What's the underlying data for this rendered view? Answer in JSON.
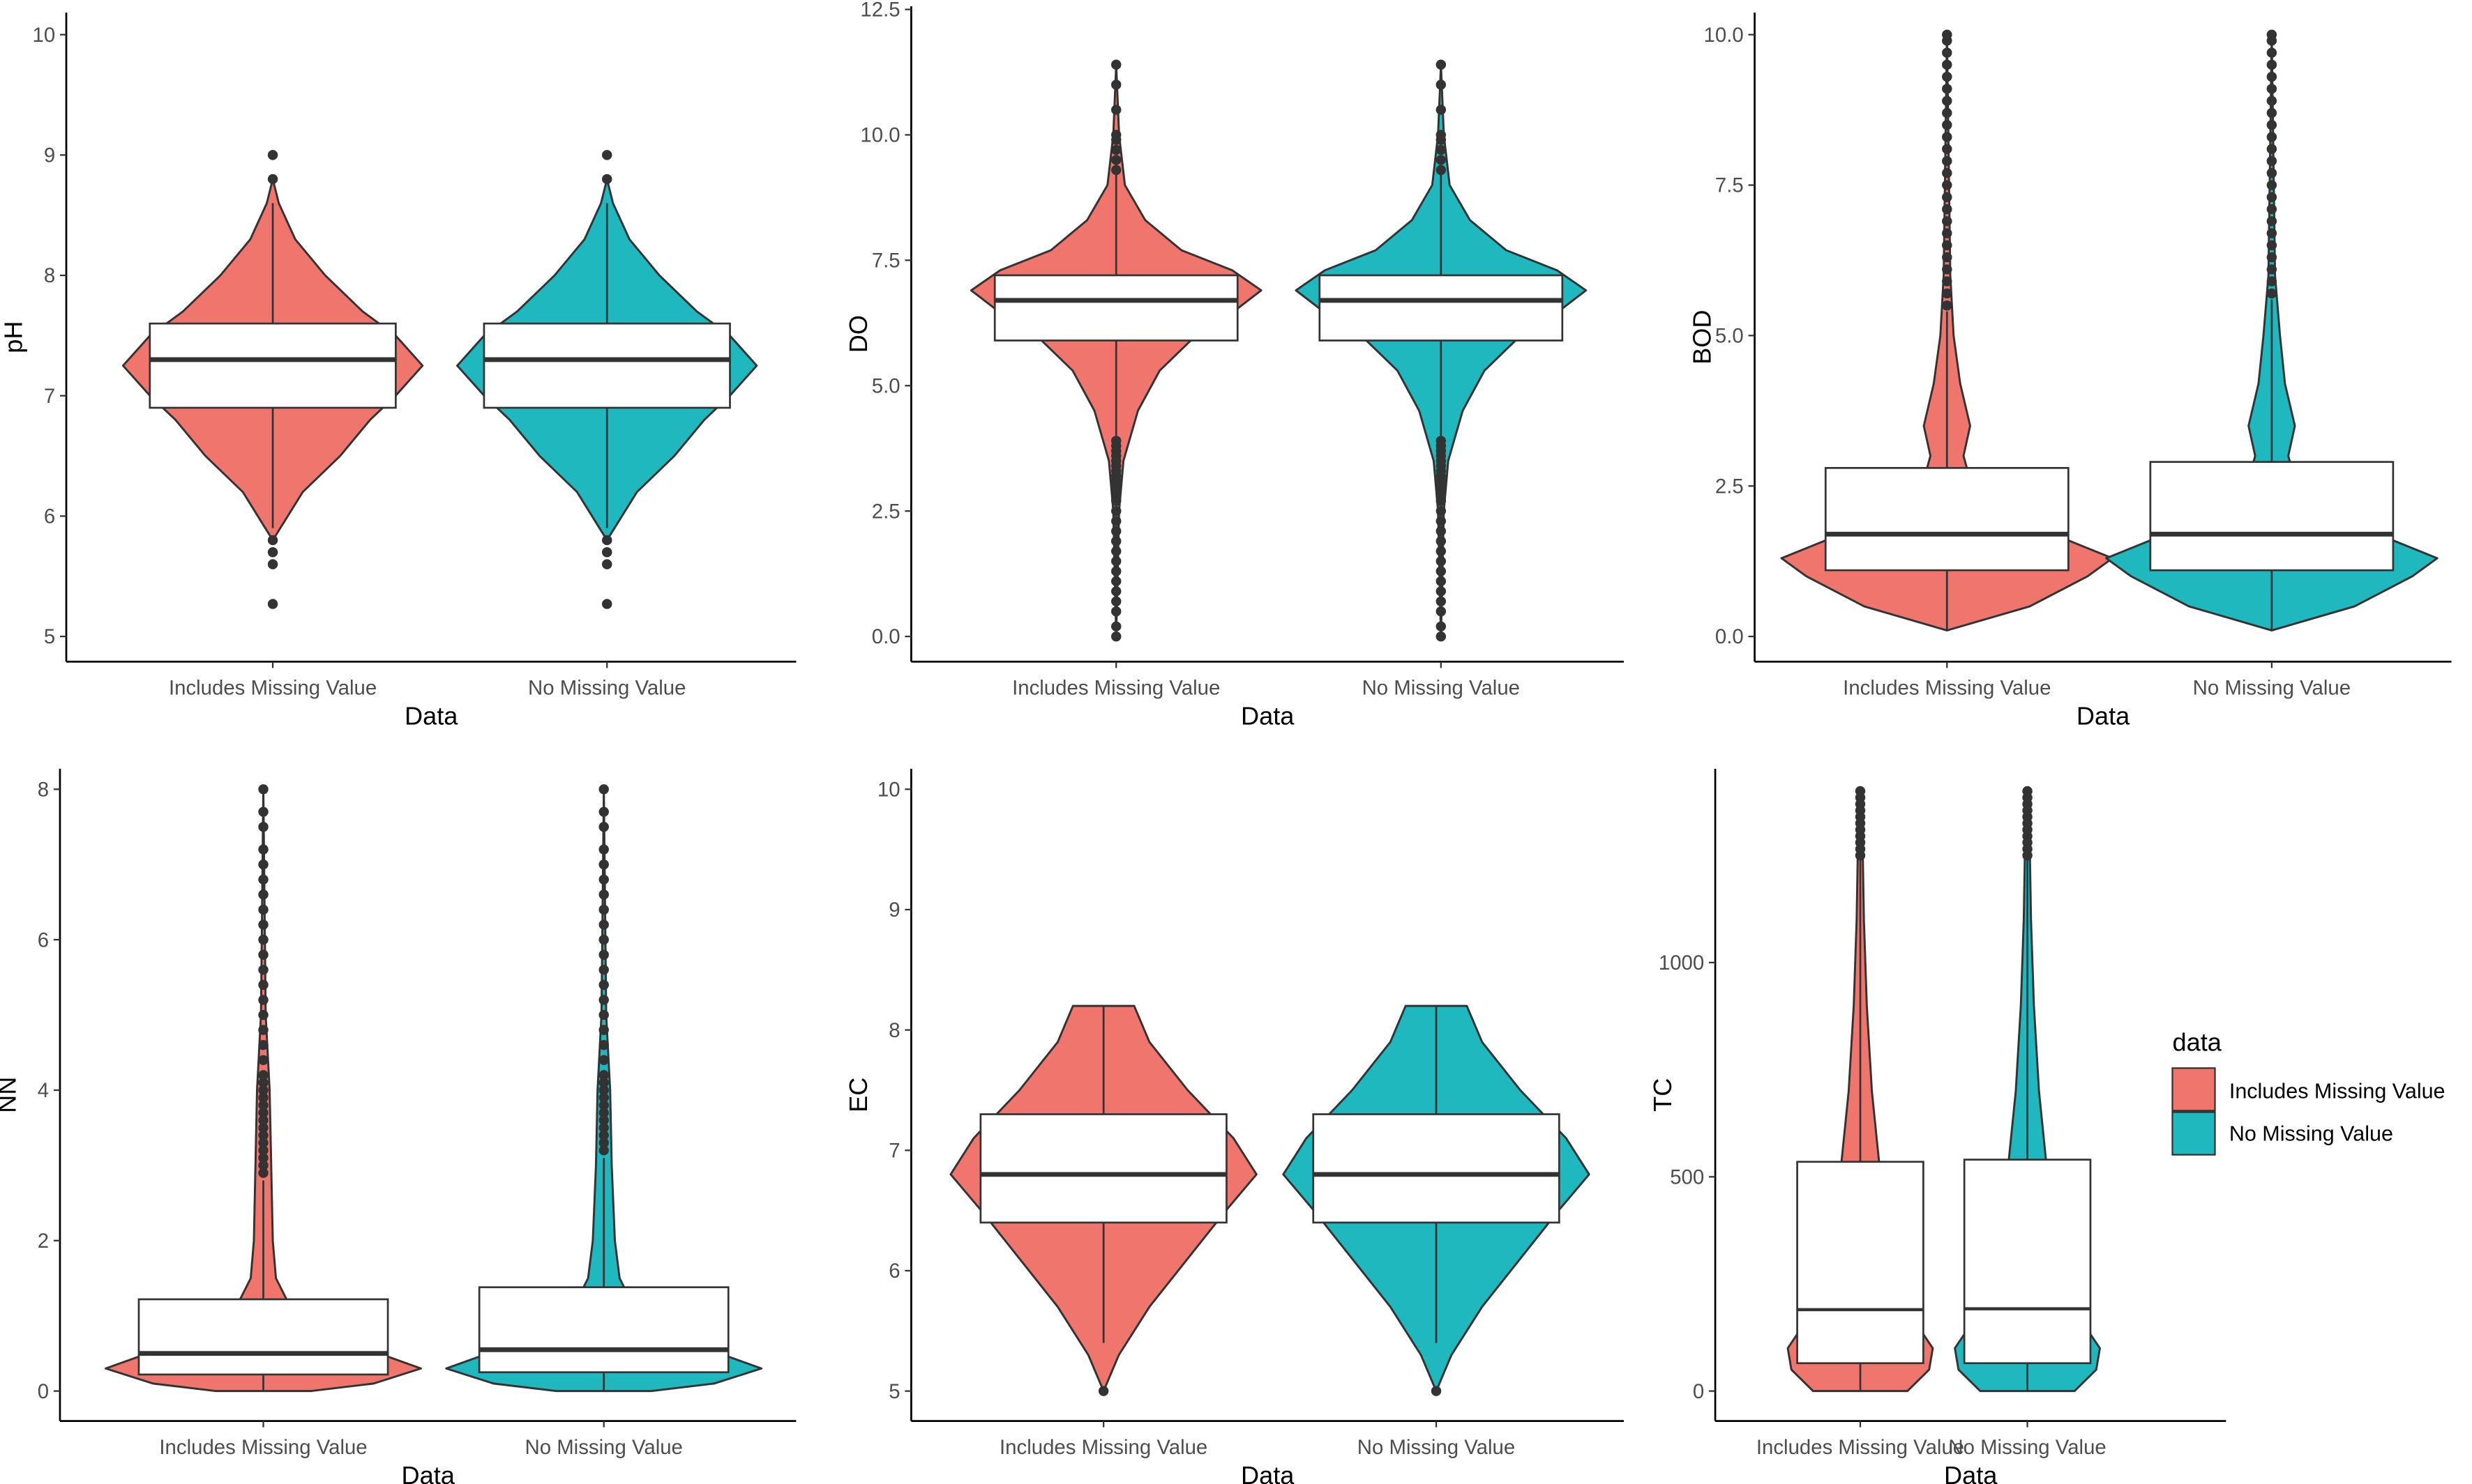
{
  "chart_data": [
    {
      "type": "violin-box",
      "ylabel": "pH",
      "xlabel": "Data",
      "categories": [
        "Includes Missing Value",
        "No Missing Value"
      ],
      "yticks": [
        5,
        6,
        7,
        8,
        9,
        10
      ],
      "ylim": [
        4.8,
        10.3
      ],
      "series": [
        {
          "name": "Includes Missing Value",
          "density": [
            [
              5.8,
              0
            ],
            [
              5.9,
              0.05
            ],
            [
              6.2,
              0.2
            ],
            [
              6.5,
              0.45
            ],
            [
              6.8,
              0.65
            ],
            [
              7.0,
              0.82
            ],
            [
              7.25,
              1.0
            ],
            [
              7.5,
              0.82
            ],
            [
              7.7,
              0.6
            ],
            [
              8.0,
              0.35
            ],
            [
              8.3,
              0.15
            ],
            [
              8.6,
              0.04
            ],
            [
              8.8,
              0
            ]
          ],
          "q1": 6.9,
          "median": 7.3,
          "q3": 7.6,
          "whisker_low": 5.9,
          "whisker_high": 8.6,
          "outliers": [
            5.27,
            5.6,
            5.7,
            5.8,
            8.8,
            9.0
          ]
        },
        {
          "name": "No Missing Value",
          "density": [
            [
              5.8,
              0
            ],
            [
              5.9,
              0.05
            ],
            [
              6.2,
              0.2
            ],
            [
              6.5,
              0.45
            ],
            [
              6.8,
              0.65
            ],
            [
              7.0,
              0.82
            ],
            [
              7.25,
              1.0
            ],
            [
              7.5,
              0.82
            ],
            [
              7.7,
              0.6
            ],
            [
              8.0,
              0.35
            ],
            [
              8.3,
              0.15
            ],
            [
              8.6,
              0.04
            ],
            [
              8.8,
              0
            ]
          ],
          "q1": 6.9,
          "median": 7.3,
          "q3": 7.6,
          "whisker_low": 5.9,
          "whisker_high": 8.6,
          "outliers": [
            5.27,
            5.6,
            5.7,
            5.8,
            8.8,
            9.0
          ]
        }
      ]
    },
    {
      "type": "violin-box",
      "ylabel": "DO",
      "xlabel": "Data",
      "categories": [
        "Includes Missing Value",
        "No Missing Value"
      ],
      "yticks": [
        0.0,
        2.5,
        5.0,
        7.5,
        10.0,
        12.5
      ],
      "ytick_labels": [
        "0.0",
        "2.5",
        "5.0",
        "7.5",
        "10.0",
        "12.5"
      ],
      "ylim": [
        -0.6,
        12.6
      ],
      "series": [
        {
          "name": "Includes Missing Value",
          "density": [
            [
              0,
              0
            ],
            [
              2.5,
              0.02
            ],
            [
              3.5,
              0.05
            ],
            [
              4.5,
              0.15
            ],
            [
              5.3,
              0.3
            ],
            [
              6.0,
              0.55
            ],
            [
              6.5,
              0.82
            ],
            [
              6.9,
              1.0
            ],
            [
              7.3,
              0.8
            ],
            [
              7.7,
              0.45
            ],
            [
              8.3,
              0.2
            ],
            [
              9.0,
              0.06
            ],
            [
              10,
              0.02
            ],
            [
              11.4,
              0
            ]
          ],
          "q1": 5.9,
          "median": 6.7,
          "q3": 7.2,
          "whisker_low": 4.0,
          "whisker_high": 9.2,
          "outliers": [
            0,
            0.2,
            0.5,
            0.7,
            0.9,
            1.1,
            1.3,
            1.5,
            1.7,
            1.9,
            2.1,
            2.3,
            2.5,
            2.7,
            2.8,
            2.9,
            3.0,
            3.1,
            3.2,
            3.3,
            3.4,
            3.5,
            3.6,
            3.7,
            3.8,
            3.9,
            9.3,
            9.5,
            9.7,
            9.9,
            10.0,
            10.5,
            11.0,
            11.4
          ]
        },
        {
          "name": "No Missing Value",
          "density": [
            [
              0,
              0
            ],
            [
              2.5,
              0.02
            ],
            [
              3.5,
              0.05
            ],
            [
              4.5,
              0.15
            ],
            [
              5.3,
              0.3
            ],
            [
              6.0,
              0.55
            ],
            [
              6.5,
              0.82
            ],
            [
              6.9,
              1.0
            ],
            [
              7.3,
              0.8
            ],
            [
              7.7,
              0.45
            ],
            [
              8.3,
              0.2
            ],
            [
              9.0,
              0.06
            ],
            [
              10,
              0.02
            ],
            [
              11.4,
              0
            ]
          ],
          "q1": 5.9,
          "median": 6.7,
          "q3": 7.2,
          "whisker_low": 4.0,
          "whisker_high": 9.2,
          "outliers": [
            0,
            0.2,
            0.5,
            0.7,
            0.9,
            1.1,
            1.3,
            1.5,
            1.7,
            1.9,
            2.1,
            2.3,
            2.5,
            2.7,
            2.8,
            2.9,
            3.0,
            3.1,
            3.2,
            3.3,
            3.4,
            3.5,
            3.6,
            3.7,
            3.8,
            3.9,
            9.3,
            9.5,
            9.7,
            9.9,
            10.0,
            10.5,
            11.0,
            11.4
          ]
        }
      ]
    },
    {
      "type": "violin-box",
      "ylabel": "BOD",
      "xlabel": "Data",
      "categories": [
        "Includes Missing Value",
        "No Missing Value"
      ],
      "yticks": [
        0.0,
        2.5,
        5.0,
        7.5,
        10.0
      ],
      "ytick_labels": [
        "0.0",
        "2.5",
        "5.0",
        "7.5",
        "10.0"
      ],
      "ylim": [
        -0.4,
        10.5
      ],
      "series": [
        {
          "name": "Includes Missing Value",
          "density": [
            [
              0.1,
              0
            ],
            [
              0.5,
              0.5
            ],
            [
              1.0,
              0.85
            ],
            [
              1.3,
              1.0
            ],
            [
              1.8,
              0.55
            ],
            [
              2.5,
              0.15
            ],
            [
              3.0,
              0.1
            ],
            [
              3.5,
              0.14
            ],
            [
              4.2,
              0.08
            ],
            [
              5,
              0.04
            ],
            [
              6,
              0.02
            ],
            [
              8,
              0.01
            ],
            [
              10,
              0
            ]
          ],
          "q1": 1.1,
          "median": 1.7,
          "q3": 2.8,
          "whisker_low": 0.1,
          "whisker_high": 5.4,
          "outliers": [
            5.5,
            5.7,
            5.9,
            6.1,
            6.3,
            6.5,
            6.7,
            6.9,
            7.1,
            7.3,
            7.5,
            7.7,
            7.9,
            8.1,
            8.3,
            8.5,
            8.7,
            8.9,
            9.1,
            9.3,
            9.5,
            9.7,
            9.9,
            10.0
          ]
        },
        {
          "name": "No Missing Value",
          "density": [
            [
              0.1,
              0
            ],
            [
              0.5,
              0.5
            ],
            [
              1.0,
              0.85
            ],
            [
              1.3,
              1.0
            ],
            [
              1.8,
              0.55
            ],
            [
              2.5,
              0.15
            ],
            [
              3.0,
              0.1
            ],
            [
              3.5,
              0.14
            ],
            [
              4.2,
              0.08
            ],
            [
              5,
              0.05
            ],
            [
              6,
              0.02
            ],
            [
              8,
              0.01
            ],
            [
              10,
              0
            ]
          ],
          "q1": 1.1,
          "median": 1.7,
          "q3": 2.9,
          "whisker_low": 0.1,
          "whisker_high": 5.6,
          "outliers": [
            5.7,
            5.9,
            6.1,
            6.3,
            6.5,
            6.7,
            6.9,
            7.1,
            7.3,
            7.5,
            7.7,
            7.9,
            8.1,
            8.3,
            8.5,
            8.7,
            8.9,
            9.1,
            9.3,
            9.5,
            9.7,
            9.9,
            10.0
          ]
        }
      ]
    },
    {
      "type": "violin-box",
      "ylabel": "NN",
      "xlabel": "Data",
      "categories": [
        "Includes Missing Value",
        "No Missing Value"
      ],
      "yticks": [
        0,
        2,
        4,
        6,
        8
      ],
      "ylim": [
        -0.4,
        8.2
      ],
      "series": [
        {
          "name": "Includes Missing Value",
          "density": [
            [
              0,
              0.3
            ],
            [
              0.1,
              0.7
            ],
            [
              0.3,
              1.0
            ],
            [
              0.6,
              0.6
            ],
            [
              1.0,
              0.2
            ],
            [
              1.5,
              0.08
            ],
            [
              2,
              0.06
            ],
            [
              3,
              0.05
            ],
            [
              4,
              0.04
            ],
            [
              5,
              0.015
            ],
            [
              8,
              0
            ]
          ],
          "q1": 0.22,
          "median": 0.5,
          "q3": 1.22,
          "whisker_low": 0,
          "whisker_high": 2.8,
          "outliers": [
            2.9,
            3.0,
            3.1,
            3.2,
            3.3,
            3.4,
            3.5,
            3.6,
            3.7,
            3.8,
            3.9,
            4.0,
            4.1,
            4.2,
            4.4,
            4.6,
            4.8,
            5.0,
            5.2,
            5.4,
            5.6,
            5.8,
            6.0,
            6.2,
            6.4,
            6.6,
            6.8,
            7.0,
            7.2,
            7.5,
            7.7,
            8.0
          ]
        },
        {
          "name": "No Missing Value",
          "density": [
            [
              0,
              0.3
            ],
            [
              0.1,
              0.7
            ],
            [
              0.3,
              1.0
            ],
            [
              0.6,
              0.6
            ],
            [
              1.0,
              0.22
            ],
            [
              1.5,
              0.1
            ],
            [
              2,
              0.07
            ],
            [
              3,
              0.05
            ],
            [
              4,
              0.04
            ],
            [
              5,
              0.015
            ],
            [
              8,
              0
            ]
          ],
          "q1": 0.25,
          "median": 0.55,
          "q3": 1.38,
          "whisker_low": 0,
          "whisker_high": 3.1,
          "outliers": [
            3.2,
            3.3,
            3.4,
            3.5,
            3.6,
            3.7,
            3.8,
            3.9,
            4.0,
            4.1,
            4.2,
            4.4,
            4.6,
            4.8,
            5.0,
            5.2,
            5.4,
            5.6,
            5.8,
            6.0,
            6.2,
            6.4,
            6.6,
            6.8,
            7.0,
            7.2,
            7.5,
            7.7,
            8.0
          ]
        }
      ]
    },
    {
      "type": "violin-box",
      "ylabel": "EC",
      "xlabel": "Data",
      "categories": [
        "Includes Missing Value",
        "No Missing Value"
      ],
      "yticks": [
        5,
        6,
        7,
        8,
        9,
        10
      ],
      "ylim": [
        4.8,
        10.3
      ],
      "series": [
        {
          "name": "Includes Missing Value",
          "density": [
            [
              5,
              0
            ],
            [
              5.3,
              0.1
            ],
            [
              5.7,
              0.3
            ],
            [
              6.1,
              0.55
            ],
            [
              6.5,
              0.8
            ],
            [
              6.8,
              1.0
            ],
            [
              7.1,
              0.85
            ],
            [
              7.5,
              0.55
            ],
            [
              7.9,
              0.3
            ],
            [
              8.2,
              0.2
            ]
          ],
          "q1": 6.4,
          "median": 6.8,
          "q3": 7.3,
          "whisker_low": 5.4,
          "whisker_high": 8.2,
          "outliers": [
            5.0
          ]
        },
        {
          "name": "No Missing Value",
          "density": [
            [
              5,
              0
            ],
            [
              5.3,
              0.1
            ],
            [
              5.7,
              0.3
            ],
            [
              6.1,
              0.55
            ],
            [
              6.5,
              0.8
            ],
            [
              6.8,
              1.0
            ],
            [
              7.1,
              0.85
            ],
            [
              7.5,
              0.55
            ],
            [
              7.9,
              0.3
            ],
            [
              8.2,
              0.2
            ]
          ],
          "q1": 6.4,
          "median": 6.8,
          "q3": 7.3,
          "whisker_low": 5.4,
          "whisker_high": 8.2,
          "outliers": [
            5.0
          ]
        }
      ]
    },
    {
      "type": "violin-box",
      "ylabel": "TC",
      "xlabel": "Data",
      "categories": [
        "Includes Missing Value",
        "No Missing Value"
      ],
      "yticks": [
        0,
        500,
        1000
      ],
      "ylim": [
        -70,
        1460
      ],
      "series": [
        {
          "name": "Includes Missing Value",
          "density": [
            [
              0,
              0.65
            ],
            [
              50,
              0.95
            ],
            [
              100,
              1.0
            ],
            [
              150,
              0.8
            ],
            [
              200,
              0.4
            ],
            [
              300,
              0.3
            ],
            [
              500,
              0.28
            ],
            [
              700,
              0.16
            ],
            [
              900,
              0.09
            ],
            [
              1100,
              0.05
            ],
            [
              1300,
              0.03
            ],
            [
              1400,
              0
            ]
          ],
          "q1": 65,
          "median": 190,
          "q3": 535,
          "whisker_low": 0,
          "whisker_high": 1240,
          "outliers": [
            1250,
            1265,
            1280,
            1295,
            1310,
            1325,
            1340,
            1355,
            1370,
            1385,
            1400
          ]
        },
        {
          "name": "No Missing Value",
          "density": [
            [
              0,
              0.65
            ],
            [
              50,
              0.95
            ],
            [
              100,
              1.0
            ],
            [
              150,
              0.8
            ],
            [
              200,
              0.4
            ],
            [
              300,
              0.3
            ],
            [
              500,
              0.28
            ],
            [
              700,
              0.16
            ],
            [
              900,
              0.09
            ],
            [
              1100,
              0.05
            ],
            [
              1300,
              0.03
            ],
            [
              1400,
              0
            ]
          ],
          "q1": 65,
          "median": 192,
          "q3": 540,
          "whisker_low": 0,
          "whisker_high": 1240,
          "outliers": [
            1250,
            1265,
            1280,
            1295,
            1310,
            1325,
            1340,
            1355,
            1370,
            1385,
            1400
          ]
        }
      ]
    }
  ],
  "legend": {
    "title": "data",
    "entries": [
      {
        "label": "Includes Missing Value",
        "color": "#F8766D"
      },
      {
        "label": "No Missing Value",
        "color": "#00BFC4"
      }
    ]
  },
  "colors": {
    "fill": [
      "#F0766D",
      "#1FB8BE"
    ],
    "line": "#333333"
  }
}
